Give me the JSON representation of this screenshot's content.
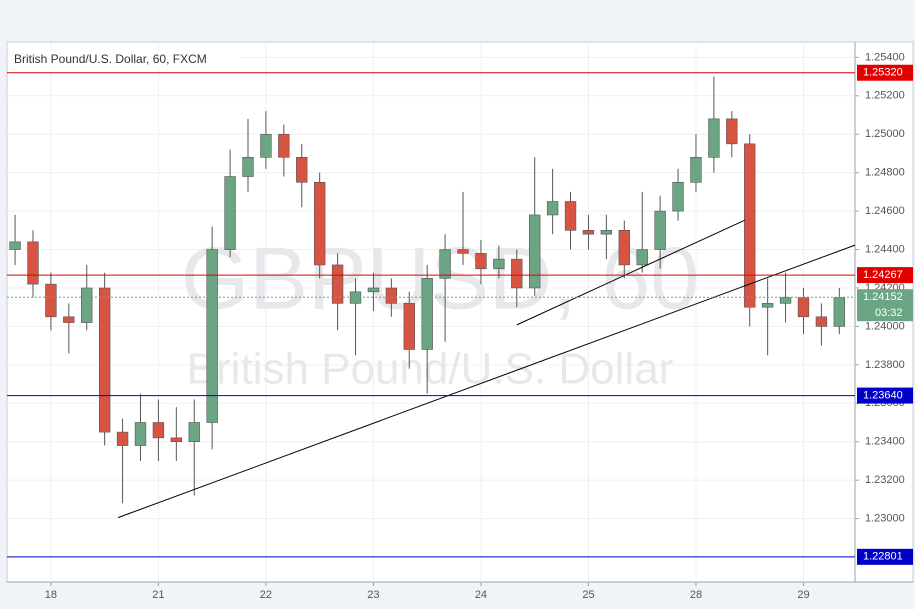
{
  "chart_data": {
    "type": "candlestick",
    "title": "British Pound/U.S. Dollar, 60, FXCM",
    "watermark": {
      "symbol": "GBPUSD, 60",
      "name": "British Pound/U.S. Dollar"
    },
    "x": [
      -8,
      -4,
      0,
      4,
      8,
      12,
      16,
      20,
      24,
      28,
      32,
      36,
      40,
      44,
      48,
      52,
      56,
      60,
      64,
      68,
      72,
      76,
      80,
      84,
      88,
      92,
      96,
      100,
      104,
      108,
      112,
      116,
      120,
      124,
      128,
      132,
      136,
      140,
      144,
      148,
      152,
      156,
      160,
      164,
      168,
      172,
      176
    ],
    "open": [
      1.244,
      1.2444,
      1.2422,
      1.2405,
      1.2402,
      1.242,
      1.2345,
      1.2338,
      1.235,
      1.2342,
      1.234,
      1.235,
      1.244,
      1.2478,
      1.2488,
      1.25,
      1.2488,
      1.2475,
      1.2432,
      1.2412,
      1.2418,
      1.242,
      1.2412,
      1.2388,
      1.2425,
      1.244,
      1.2438,
      1.243,
      1.2435,
      1.242,
      1.2458,
      1.2465,
      1.245,
      1.2448,
      1.245,
      1.2432,
      1.244,
      1.246,
      1.2475,
      1.2488,
      1.2508,
      1.2495,
      1.241,
      1.2412,
      1.2415,
      1.2405,
      1.24
    ],
    "high": [
      1.2458,
      1.245,
      1.2428,
      1.2412,
      1.2432,
      1.2428,
      1.2352,
      1.2365,
      1.2362,
      1.2358,
      1.2362,
      1.2452,
      1.2492,
      1.2508,
      1.2512,
      1.2505,
      1.2495,
      1.248,
      1.2438,
      1.2425,
      1.2428,
      1.2425,
      1.2418,
      1.2432,
      1.2448,
      1.247,
      1.2445,
      1.2442,
      1.244,
      1.2488,
      1.2482,
      1.247,
      1.2458,
      1.2458,
      1.2455,
      1.247,
      1.2468,
      1.2482,
      1.25,
      1.253,
      1.2512,
      1.25,
      1.2425,
      1.2428,
      1.242,
      1.2412,
      1.242
    ],
    "low": [
      1.2432,
      1.2415,
      1.2398,
      1.2386,
      1.2398,
      1.2338,
      1.2308,
      1.233,
      1.233,
      1.233,
      1.2312,
      1.2336,
      1.2436,
      1.247,
      1.2482,
      1.2478,
      1.2462,
      1.2425,
      1.2398,
      1.2385,
      1.2408,
      1.2405,
      1.2378,
      1.2365,
      1.2392,
      1.2432,
      1.2422,
      1.2425,
      1.241,
      1.2416,
      1.2448,
      1.244,
      1.244,
      1.2435,
      1.2425,
      1.2428,
      1.243,
      1.2455,
      1.247,
      1.248,
      1.2488,
      1.24,
      1.2385,
      1.2402,
      1.2396,
      1.239,
      1.2396
    ],
    "close": [
      1.2444,
      1.2422,
      1.2405,
      1.2402,
      1.242,
      1.2345,
      1.2338,
      1.235,
      1.2342,
      1.234,
      1.235,
      1.244,
      1.2478,
      1.2488,
      1.25,
      1.2488,
      1.2475,
      1.2432,
      1.2412,
      1.2418,
      1.242,
      1.2412,
      1.2388,
      1.2425,
      1.244,
      1.2438,
      1.243,
      1.2435,
      1.242,
      1.2458,
      1.2465,
      1.245,
      1.2448,
      1.245,
      1.2432,
      1.244,
      1.246,
      1.2475,
      1.2488,
      1.2508,
      1.2495,
      1.241,
      1.2412,
      1.2415,
      1.2405,
      1.24,
      1.2415
    ],
    "up_color": "#6ba583",
    "down_color": "#d75442",
    "xlim": [
      -9.8,
      179.5
    ],
    "xticks": [
      {
        "value": 0,
        "label": "18"
      },
      {
        "value": 24,
        "label": "21"
      },
      {
        "value": 48,
        "label": "22"
      },
      {
        "value": 72,
        "label": "23"
      },
      {
        "value": 96,
        "label": "24"
      },
      {
        "value": 120,
        "label": "25"
      },
      {
        "value": 144,
        "label": "28"
      },
      {
        "value": 168,
        "label": "29"
      }
    ],
    "ylim": [
      1.2267,
      1.2548
    ],
    "yticks": [
      {
        "value": 1.23,
        "label": "1.23000"
      },
      {
        "value": 1.232,
        "label": "1.23200"
      },
      {
        "value": 1.234,
        "label": "1.23400"
      },
      {
        "value": 1.236,
        "label": "1.23600"
      },
      {
        "value": 1.238,
        "label": "1.23800"
      },
      {
        "value": 1.24,
        "label": "1.24000"
      },
      {
        "value": 1.242,
        "label": "1.24200"
      },
      {
        "value": 1.244,
        "label": "1.24400"
      },
      {
        "value": 1.246,
        "label": "1.24600"
      },
      {
        "value": 1.248,
        "label": "1.24800"
      },
      {
        "value": 1.25,
        "label": "1.25000"
      },
      {
        "value": 1.252,
        "label": "1.25200"
      },
      {
        "value": 1.254,
        "label": "1.25400"
      }
    ],
    "grid": true,
    "levels": [
      {
        "value": 1.2532,
        "label": "1.25320",
        "color": "#e00000"
      },
      {
        "value": 1.24267,
        "label": "1.24267",
        "color": "#e00000"
      },
      {
        "value": 1.2364,
        "label": "1.23640",
        "color": "#0000c8"
      },
      {
        "value": 1.22801,
        "label": "1.22801",
        "color": "#0000c8"
      }
    ],
    "current": {
      "value": 1.24152,
      "label": "1.24152",
      "countdown": "03:32",
      "color": "#6ba583"
    },
    "trendlines": [
      {
        "x": [
          15,
          179.5
        ],
        "y": [
          1.23005,
          1.24423
        ]
      },
      {
        "x": [
          104,
          154.9
        ],
        "y": [
          1.24008,
          1.24553
        ]
      }
    ]
  }
}
